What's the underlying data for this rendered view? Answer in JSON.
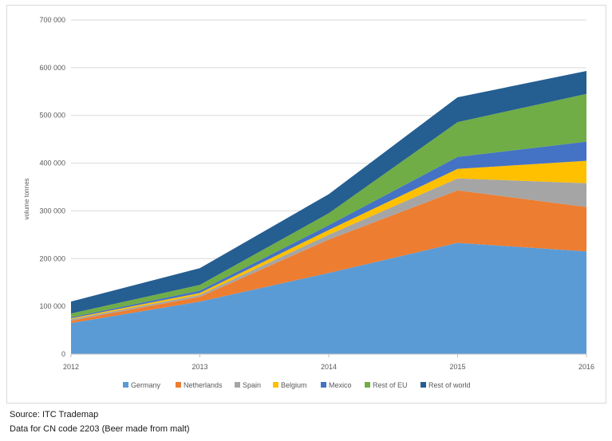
{
  "chart_data": {
    "type": "area",
    "stacked": true,
    "x": [
      "2012",
      "2013",
      "2014",
      "2015",
      "2016"
    ],
    "ylabel": "volume tonnes",
    "ylim": [
      0,
      700000
    ],
    "yticks": [
      0,
      100000,
      200000,
      300000,
      400000,
      500000,
      600000,
      700000
    ],
    "ytick_labels": [
      "0",
      "100 000",
      "200 000",
      "300 000",
      "400 000",
      "500 000",
      "600 000",
      "700 000"
    ],
    "grid": true,
    "legend_position": "bottom",
    "series": [
      {
        "name": "Germany",
        "color": "#5b9bd5",
        "values": [
          65000,
          110000,
          170000,
          233000,
          215000
        ]
      },
      {
        "name": "Netherlands",
        "color": "#ed7d31",
        "values": [
          5000,
          10000,
          70000,
          110000,
          93000
        ]
      },
      {
        "name": "Spain",
        "color": "#a5a5a5",
        "values": [
          3000,
          4000,
          10000,
          25000,
          50000
        ]
      },
      {
        "name": "Belgium",
        "color": "#ffc000",
        "values": [
          2000,
          4000,
          10000,
          20000,
          47000
        ]
      },
      {
        "name": "Mexico",
        "color": "#4472c4",
        "values": [
          2000,
          5000,
          10000,
          25000,
          40000
        ]
      },
      {
        "name": "Rest of EU",
        "color": "#70ad47",
        "values": [
          8000,
          12000,
          25000,
          73000,
          100000
        ]
      },
      {
        "name": "Rest of world",
        "color": "#255e91",
        "values": [
          25000,
          35000,
          40000,
          52000,
          48000
        ]
      }
    ]
  },
  "notes": {
    "source": "Source: ITC Trademap",
    "data": "Data for CN code 2203 (Beer made from malt)"
  }
}
